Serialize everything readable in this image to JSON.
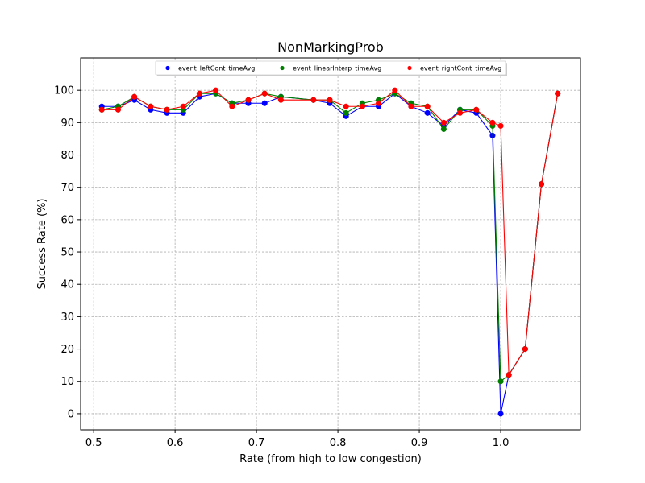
{
  "chart_data": {
    "type": "line",
    "title": "NonMarkingProb",
    "xlabel": "Rate (from high to low congestion)",
    "ylabel": "Success Rate (%)",
    "xlim": [
      0.484,
      1.098
    ],
    "ylim": [
      -5,
      110
    ],
    "xticks": [
      0.5,
      0.6,
      0.7,
      0.8,
      0.9,
      1.0
    ],
    "xtick_labels": [
      "0.5",
      "0.6",
      "0.7",
      "0.8",
      "0.9",
      "1.0"
    ],
    "yticks": [
      0,
      10,
      20,
      30,
      40,
      50,
      60,
      70,
      80,
      90,
      100
    ],
    "ytick_labels": [
      "0",
      "10",
      "20",
      "30",
      "40",
      "50",
      "60",
      "70",
      "80",
      "90",
      "100"
    ],
    "grid": true,
    "legend_position": "top-center",
    "series": [
      {
        "name": "event_leftCont_timeAvg",
        "color": "#0000ff",
        "x": [
          0.51,
          0.53,
          0.55,
          0.57,
          0.59,
          0.61,
          0.63,
          0.65,
          0.67,
          0.69,
          0.71,
          0.73,
          0.77,
          0.79,
          0.81,
          0.83,
          0.85,
          0.87,
          0.89,
          0.91,
          0.93,
          0.95,
          0.97,
          0.99,
          1.0,
          1.01,
          1.03,
          1.05,
          1.07
        ],
        "y": [
          95,
          95,
          97,
          94,
          93,
          93,
          98,
          99,
          96,
          96,
          96,
          98,
          97,
          96,
          92,
          95,
          95,
          99,
          95,
          93,
          89,
          94,
          93,
          86,
          0,
          12,
          20,
          71,
          99
        ]
      },
      {
        "name": "event_linearInterp_timeAvg",
        "color": "#008000",
        "x": [
          0.51,
          0.53,
          0.55,
          0.57,
          0.59,
          0.61,
          0.63,
          0.65,
          0.67,
          0.69,
          0.71,
          0.73,
          0.77,
          0.79,
          0.81,
          0.83,
          0.85,
          0.87,
          0.89,
          0.91,
          0.93,
          0.95,
          0.97,
          0.99,
          1.0,
          1.01,
          1.03,
          1.05,
          1.07
        ],
        "y": [
          94,
          95,
          98,
          95,
          94,
          94,
          99,
          99,
          96,
          97,
          99,
          98,
          97,
          97,
          93,
          96,
          97,
          99,
          96,
          95,
          88,
          94,
          94,
          89,
          10,
          12,
          20,
          71,
          99
        ]
      },
      {
        "name": "event_rightCont_timeAvg",
        "color": "#ff0000",
        "x": [
          0.51,
          0.53,
          0.55,
          0.57,
          0.59,
          0.61,
          0.63,
          0.65,
          0.67,
          0.69,
          0.71,
          0.73,
          0.77,
          0.79,
          0.81,
          0.83,
          0.85,
          0.87,
          0.89,
          0.91,
          0.93,
          0.95,
          0.97,
          0.99,
          1.0,
          1.01,
          1.03,
          1.05,
          1.07
        ],
        "y": [
          94,
          94,
          98,
          95,
          94,
          95,
          99,
          100,
          95,
          97,
          99,
          97,
          97,
          97,
          95,
          95,
          96,
          100,
          95,
          95,
          90,
          93,
          94,
          90,
          89,
          12,
          20,
          71,
          99
        ]
      }
    ]
  }
}
